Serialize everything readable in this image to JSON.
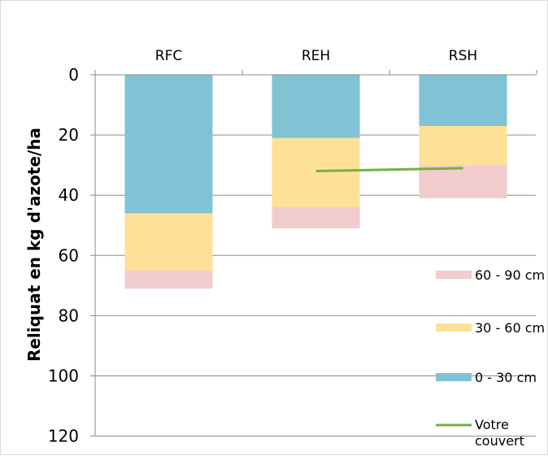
{
  "chart_data": {
    "type": "bar",
    "stacked": true,
    "categories": [
      "RFC",
      "REH",
      "RSH"
    ],
    "ylabel": "Reliquat en kg d'azote/ha",
    "ylim": [
      0,
      120
    ],
    "y_axis_reversed": true,
    "x_axis_position": "top",
    "yticks": [
      0,
      20,
      40,
      60,
      80,
      100,
      120
    ],
    "grid": true,
    "legend_position": "right",
    "series": [
      {
        "name": "0 - 30 cm",
        "values": [
          46,
          21,
          17
        ],
        "color": "#7fc3d4"
      },
      {
        "name": "30 - 60 cm",
        "values": [
          19,
          23,
          13
        ],
        "color": "#ffe097"
      },
      {
        "name": "60 - 90 cm",
        "values": [
          6,
          7,
          11
        ],
        "color": "#f2cbcc"
      }
    ],
    "line_series": {
      "name": "Votre couvert",
      "label_lines": [
        "Votre",
        "couvert"
      ],
      "color": "#76b041",
      "points": [
        {
          "category": "REH",
          "value": 32
        },
        {
          "category": "RSH",
          "value": 31
        }
      ]
    },
    "legend_order": [
      "60 - 90 cm",
      "30 - 60 cm",
      "0 - 30 cm",
      "Votre couvert"
    ]
  }
}
